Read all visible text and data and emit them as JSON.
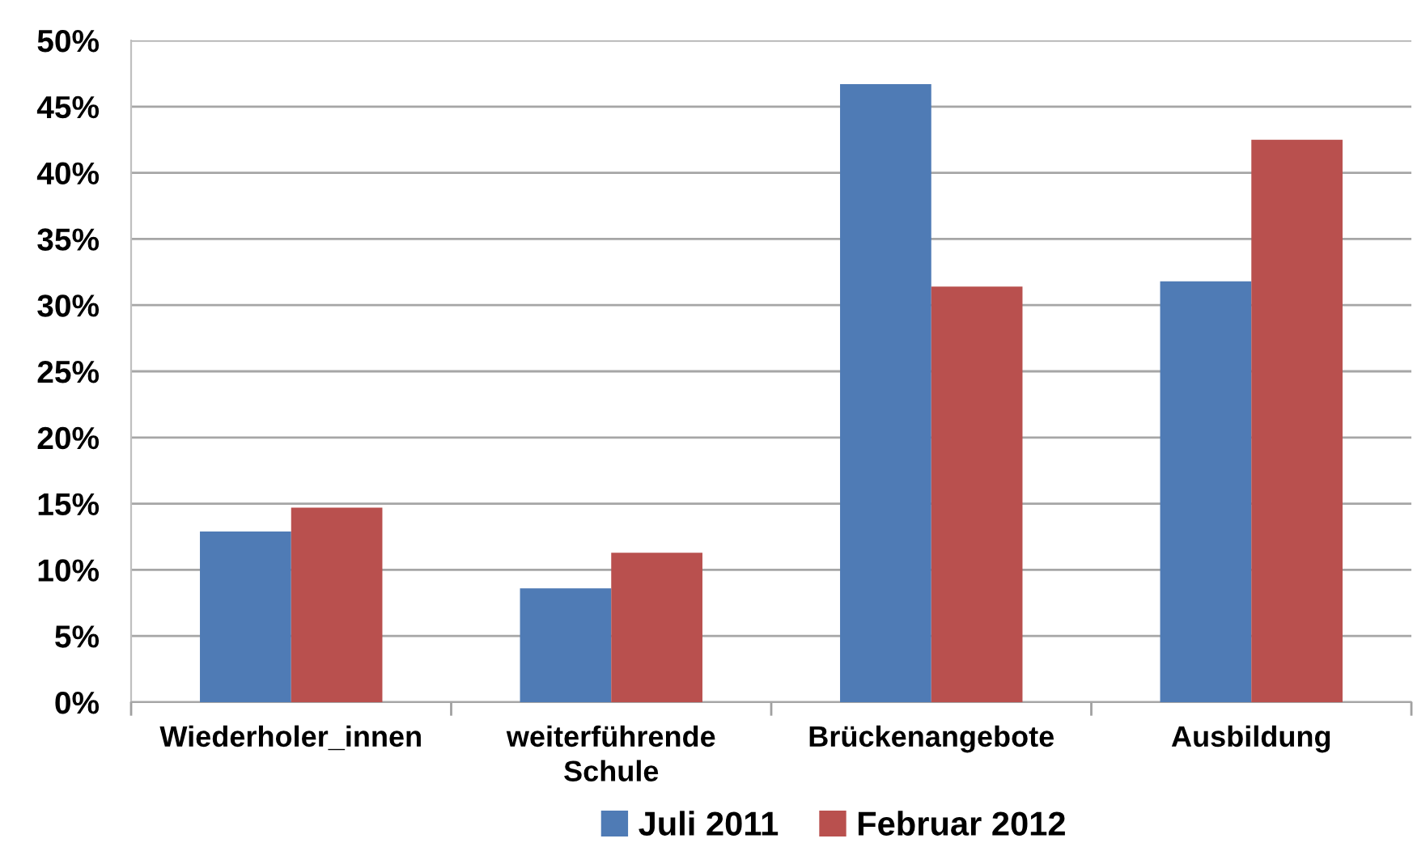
{
  "chart_data": {
    "type": "bar",
    "categories": [
      "Wiederholer_innen",
      "weiterführende Schule",
      "Brückenangebote",
      "Ausbildung"
    ],
    "series": [
      {
        "name": "Juli 2011",
        "color": "#4f7bb5",
        "values": [
          12.9,
          8.6,
          46.7,
          31.8
        ]
      },
      {
        "name": "Februar 2012",
        "color": "#b9504e",
        "values": [
          14.7,
          11.3,
          31.4,
          42.5
        ]
      }
    ],
    "ylim": [
      0,
      50
    ],
    "yticks": [
      {
        "value": 0,
        "label": "0%"
      },
      {
        "value": 5,
        "label": "5%"
      },
      {
        "value": 10,
        "label": "10%"
      },
      {
        "value": 15,
        "label": "15%"
      },
      {
        "value": 20,
        "label": "20%"
      },
      {
        "value": 25,
        "label": "25%"
      },
      {
        "value": 30,
        "label": "30%"
      },
      {
        "value": 35,
        "label": "35%"
      },
      {
        "value": 40,
        "label": "40%"
      },
      {
        "value": 45,
        "label": "45%"
      },
      {
        "value": 50,
        "label": "50%"
      }
    ],
    "grid": "y",
    "legend": "bottom"
  }
}
